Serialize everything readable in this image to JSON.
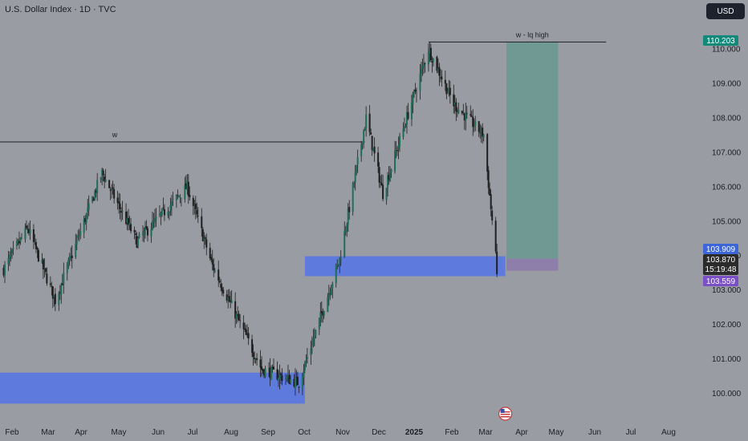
{
  "header": {
    "symbol_title": "U.S. Dollar Index · 1D · TVC",
    "currency_button": "USD"
  },
  "chart_data": {
    "type": "candlestick",
    "title": "U.S. Dollar Index · 1D · TVC",
    "xlabel": "",
    "ylabel": "",
    "ylim": [
      99.5,
      110.4
    ],
    "y_ticks": [
      "100.000",
      "101.000",
      "102.000",
      "103.000",
      "104.000",
      "105.000",
      "106.000",
      "107.000",
      "108.000",
      "109.000",
      "110.000"
    ],
    "x_ticks": [
      "Feb",
      "Mar",
      "Apr",
      "May",
      "Jun",
      "Jul",
      "Aug",
      "Sep",
      "Oct",
      "Nov",
      "Dec",
      "2025",
      "Feb",
      "Mar",
      "Apr",
      "May",
      "Jun",
      "Jul",
      "Aug"
    ],
    "approx_path": [
      {
        "date": "2024-01-25",
        "value": 103.6
      },
      {
        "date": "2024-02-14",
        "value": 104.8
      },
      {
        "date": "2024-03-08",
        "value": 102.7
      },
      {
        "date": "2024-04-16",
        "value": 106.4
      },
      {
        "date": "2024-05-15",
        "value": 104.4
      },
      {
        "date": "2024-06-26",
        "value": 106.0
      },
      {
        "date": "2024-07-17",
        "value": 103.7
      },
      {
        "date": "2024-08-27",
        "value": 100.7
      },
      {
        "date": "2024-09-27",
        "value": 100.3
      },
      {
        "date": "2024-10-31",
        "value": 103.9
      },
      {
        "date": "2024-11-22",
        "value": 108.0
      },
      {
        "date": "2024-12-06",
        "value": 105.8
      },
      {
        "date": "2025-01-13",
        "value": 110.0
      },
      {
        "date": "2025-02-03",
        "value": 108.4
      },
      {
        "date": "2025-02-28",
        "value": 107.5
      },
      {
        "date": "2025-03-11",
        "value": 103.6
      }
    ],
    "horizontal_lines": [
      {
        "label": "w",
        "value": 107.3
      },
      {
        "label": "w - lq high",
        "value": 110.2
      }
    ],
    "zones": [
      {
        "name": "demand-zone-low",
        "from_date": "2024-01-01",
        "to_date": "2024-10-02",
        "y_low": 99.7,
        "y_high": 100.6,
        "color": "#5b78e0"
      },
      {
        "name": "demand-zone-mid",
        "from_date": "2024-10-02",
        "to_date": "2025-03-18",
        "y_low": 103.4,
        "y_high": 103.98,
        "color": "#5b78e0"
      }
    ],
    "position_tool": {
      "entry": 103.909,
      "target": 110.203,
      "stop": 103.559,
      "profit_color": "#6f9992",
      "loss_color": "#8e7eaa"
    },
    "price_tags": [
      {
        "value": 110.203,
        "text": "110.203",
        "color": "#13897a"
      },
      {
        "value": 103.909,
        "text": "103.909",
        "color": "#3d67d9"
      },
      {
        "value": 103.87,
        "text": "103.870",
        "sub": "15:19:48",
        "color": "#2b2b2b"
      },
      {
        "value": 103.559,
        "text": "103.559",
        "color": "#7b4fc6"
      }
    ],
    "event_icon": "us-flag-icon",
    "colors": {
      "background": "#9a9ca3",
      "up": "#1f6e5a",
      "down": "#1f1f1f"
    }
  }
}
